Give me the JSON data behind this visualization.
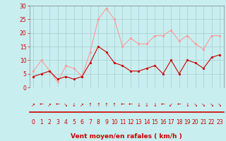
{
  "x": [
    0,
    1,
    2,
    3,
    4,
    5,
    6,
    7,
    8,
    9,
    10,
    11,
    12,
    13,
    14,
    15,
    16,
    17,
    18,
    19,
    20,
    21,
    22,
    23
  ],
  "wind_avg": [
    4,
    5,
    6,
    3,
    4,
    3,
    4,
    9,
    15,
    13,
    9,
    8,
    6,
    6,
    7,
    8,
    5,
    10,
    5,
    10,
    9,
    7,
    11,
    12
  ],
  "wind_gust": [
    6,
    10,
    6,
    2,
    8,
    7,
    4,
    13,
    25,
    29,
    25,
    15,
    18,
    16,
    16,
    19,
    19,
    21,
    17,
    19,
    16,
    14,
    19,
    19
  ],
  "arrows": [
    "↗",
    "←",
    "↗",
    "←",
    "↘",
    "↓",
    "↗",
    "↑",
    "↑",
    "↑",
    "↑",
    "←",
    "←",
    "↓",
    "↓",
    "↓",
    "←",
    "↙",
    "←",
    "↓",
    "↘",
    "↘",
    "↘",
    "↘"
  ],
  "xlabel": "Vent moyen/en rafales ( km/h )",
  "bg_color": "#c8eef0",
  "grid_color": "#aacccc",
  "line_avg_color": "#cc0000",
  "line_gust_color": "#ff9999",
  "red_line_color": "#cc0000",
  "ylim": [
    0,
    30
  ],
  "yticks": [
    0,
    5,
    10,
    15,
    20,
    25,
    30
  ],
  "xticks": [
    0,
    1,
    2,
    3,
    4,
    5,
    6,
    7,
    8,
    9,
    10,
    11,
    12,
    13,
    14,
    15,
    16,
    17,
    18,
    19,
    20,
    21,
    22,
    23
  ],
  "tick_fontsize": 5.5,
  "arrow_fontsize": 5.0,
  "xlabel_fontsize": 6.5
}
